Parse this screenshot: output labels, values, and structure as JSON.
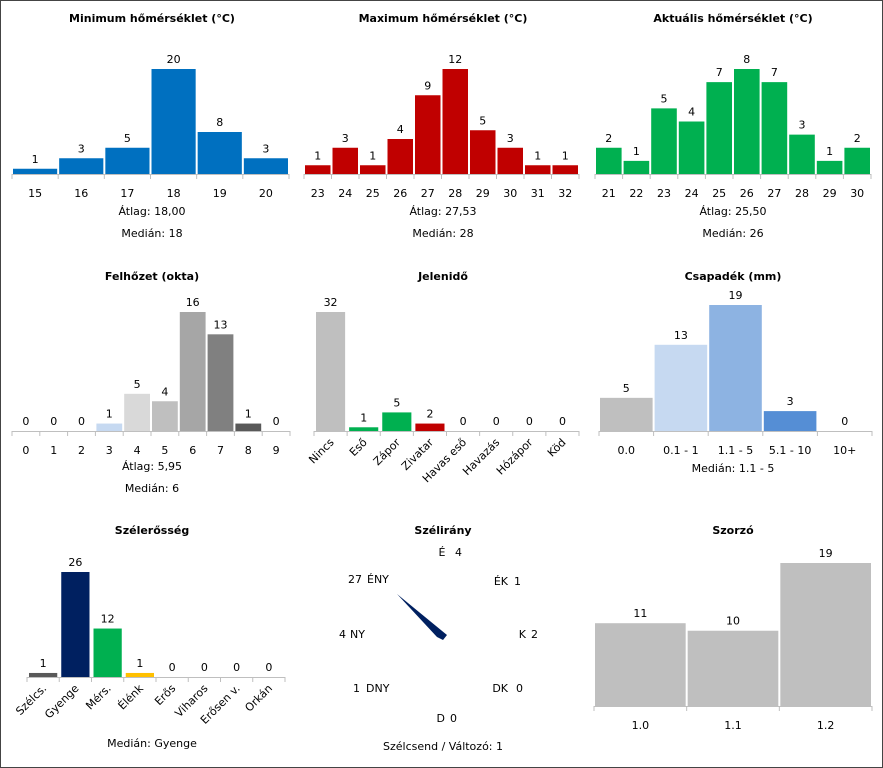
{
  "charts": [
    {
      "id": "min",
      "title": "Minimum hőmérséklet (°C)",
      "categories": [
        "15",
        "16",
        "17",
        "18",
        "19",
        "20"
      ],
      "values": [
        1,
        3,
        5,
        20,
        8,
        3
      ],
      "color": "#0070c0",
      "stats": [
        {
          "label": "Átlag:",
          "value": "18,00"
        },
        {
          "label": "Medián:",
          "value": "18"
        }
      ]
    },
    {
      "id": "max",
      "title": "Maximum hőmérséklet (°C)",
      "categories": [
        "23",
        "24",
        "25",
        "26",
        "27",
        "28",
        "29",
        "30",
        "31",
        "32"
      ],
      "values": [
        1,
        3,
        1,
        4,
        9,
        12,
        5,
        3,
        1,
        1
      ],
      "color": "#c00000",
      "stats": [
        {
          "label": "Átlag:",
          "value": "27,53"
        },
        {
          "label": "Medián:",
          "value": "28"
        }
      ]
    },
    {
      "id": "cur",
      "title": "Aktuális hőmérséklet (°C)",
      "categories": [
        "21",
        "22",
        "23",
        "24",
        "25",
        "26",
        "27",
        "28",
        "29",
        "30"
      ],
      "values": [
        2,
        1,
        5,
        4,
        7,
        8,
        7,
        3,
        1,
        2
      ],
      "color": "#00b050",
      "stats": [
        {
          "label": "Átlag:",
          "value": "25,50"
        },
        {
          "label": "Medián:",
          "value": "26"
        }
      ]
    },
    {
      "id": "cloud",
      "title": "Felhőzet (okta)",
      "categories": [
        "0",
        "1",
        "2",
        "3",
        "4",
        "5",
        "6",
        "7",
        "8",
        "9"
      ],
      "values": [
        0,
        0,
        0,
        1,
        5,
        4,
        16,
        13,
        1,
        0
      ],
      "colors": [
        "#bfbfbf",
        "#bfbfbf",
        "#bfbfbf",
        "#c6d9f1",
        "#d9d9d9",
        "#bfbfbf",
        "#a6a6a6",
        "#808080",
        "#595959",
        "#bfbfbf"
      ],
      "stats": [
        {
          "label": "Átlag:",
          "value": "5,95"
        },
        {
          "label": "Medián:",
          "value": "6"
        }
      ]
    },
    {
      "id": "wx",
      "title": "Jelenidő",
      "categories": [
        "Nincs",
        "Eső",
        "Zápor",
        "Zivatar",
        "Havas eső",
        "Havazás",
        "Hózápor",
        "Köd"
      ],
      "values": [
        32,
        1,
        5,
        2,
        0,
        0,
        0,
        0
      ],
      "colors": [
        "#bfbfbf",
        "#00b050",
        "#00b050",
        "#c00000",
        "#bfbfbf",
        "#bfbfbf",
        "#bfbfbf",
        "#bfbfbf"
      ],
      "rotated": true,
      "stats": []
    },
    {
      "id": "prec",
      "title": "Csapadék (mm)",
      "categories": [
        "0.0",
        "0.1 - 1",
        "1.1 - 5",
        "5.1 - 10",
        "10+"
      ],
      "values": [
        5,
        13,
        19,
        3,
        0
      ],
      "colors": [
        "#bfbfbf",
        "#c6d9f1",
        "#8db3e2",
        "#558ed5",
        "#bfbfbf"
      ],
      "stats": [
        {
          "label": "Medián:",
          "value": "1.1 - 5"
        }
      ]
    },
    {
      "id": "wind",
      "title": "Szélerősség",
      "categories": [
        "Szélcs.",
        "Gyenge",
        "Mérs.",
        "Élénk",
        "Erős",
        "Viharos",
        "Erősen v.",
        "Orkán"
      ],
      "values": [
        1,
        26,
        12,
        1,
        0,
        0,
        0,
        0
      ],
      "colors": [
        "#595959",
        "#002060",
        "#00b050",
        "#ffc000",
        "#bfbfbf",
        "#bfbfbf",
        "#bfbfbf",
        "#bfbfbf"
      ],
      "rotated": true,
      "stats": [
        {
          "label": "Medián:",
          "value": "Gyenge"
        }
      ]
    },
    {
      "id": "mult",
      "title": "Szorzó",
      "categories": [
        "1.0",
        "1.1",
        "1.2"
      ],
      "values": [
        11,
        10,
        19
      ],
      "color": "#bfbfbf",
      "stats": []
    }
  ],
  "wind_direction": {
    "title": "Szélirány",
    "directions": [
      {
        "name": "É",
        "count": "4"
      },
      {
        "name": "ÉK",
        "count": "1"
      },
      {
        "name": "K",
        "count": "2"
      },
      {
        "name": "DK",
        "count": "0"
      },
      {
        "name": "D",
        "count": "0"
      },
      {
        "name": "DNY",
        "count": "1"
      },
      {
        "name": "NY",
        "count": "4"
      },
      {
        "name": "ÉNY",
        "count": "27"
      }
    ],
    "dominant": "ÉNY",
    "arrow_color": "#002060",
    "footer": "Szélcsend / Változó: 1"
  },
  "chart_data": [
    {
      "type": "bar",
      "title": "Minimum hőmérséklet (°C)",
      "categories": [
        "15",
        "16",
        "17",
        "18",
        "19",
        "20"
      ],
      "values": [
        1,
        3,
        5,
        20,
        8,
        3
      ],
      "xlabel": "",
      "ylabel": ""
    },
    {
      "type": "bar",
      "title": "Maximum hőmérséklet (°C)",
      "categories": [
        "23",
        "24",
        "25",
        "26",
        "27",
        "28",
        "29",
        "30",
        "31",
        "32"
      ],
      "values": [
        1,
        3,
        1,
        4,
        9,
        12,
        5,
        3,
        1,
        1
      ],
      "xlabel": "",
      "ylabel": ""
    },
    {
      "type": "bar",
      "title": "Aktuális hőmérséklet (°C)",
      "categories": [
        "21",
        "22",
        "23",
        "24",
        "25",
        "26",
        "27",
        "28",
        "29",
        "30"
      ],
      "values": [
        2,
        1,
        5,
        4,
        7,
        8,
        7,
        3,
        1,
        2
      ],
      "xlabel": "",
      "ylabel": ""
    },
    {
      "type": "bar",
      "title": "Felhőzet (okta)",
      "categories": [
        "0",
        "1",
        "2",
        "3",
        "4",
        "5",
        "6",
        "7",
        "8",
        "9"
      ],
      "values": [
        0,
        0,
        0,
        1,
        5,
        4,
        16,
        13,
        1,
        0
      ],
      "xlabel": "",
      "ylabel": ""
    },
    {
      "type": "bar",
      "title": "Jelenidő",
      "categories": [
        "Nincs",
        "Eső",
        "Zápor",
        "Zivatar",
        "Havas eső",
        "Havazás",
        "Hózápor",
        "Köd"
      ],
      "values": [
        32,
        1,
        5,
        2,
        0,
        0,
        0,
        0
      ],
      "xlabel": "",
      "ylabel": ""
    },
    {
      "type": "bar",
      "title": "Csapadék (mm)",
      "categories": [
        "0.0",
        "0.1 - 1",
        "1.1 - 5",
        "5.1 - 10",
        "10+"
      ],
      "values": [
        5,
        13,
        19,
        3,
        0
      ],
      "xlabel": "",
      "ylabel": ""
    },
    {
      "type": "bar",
      "title": "Szélerősség",
      "categories": [
        "Szélcs.",
        "Gyenge",
        "Mérs.",
        "Élénk",
        "Erős",
        "Viharos",
        "Erősen v.",
        "Orkán"
      ],
      "values": [
        1,
        26,
        12,
        1,
        0,
        0,
        0,
        0
      ],
      "xlabel": "",
      "ylabel": ""
    },
    {
      "type": "bar",
      "title": "Szorzó",
      "categories": [
        "1.0",
        "1.1",
        "1.2"
      ],
      "values": [
        11,
        10,
        19
      ],
      "xlabel": "",
      "ylabel": ""
    },
    {
      "type": "table",
      "title": "Szélirány",
      "categories": [
        "É",
        "ÉK",
        "K",
        "DK",
        "D",
        "DNY",
        "NY",
        "ÉNY"
      ],
      "values": [
        4,
        1,
        2,
        0,
        0,
        1,
        4,
        27
      ]
    }
  ]
}
